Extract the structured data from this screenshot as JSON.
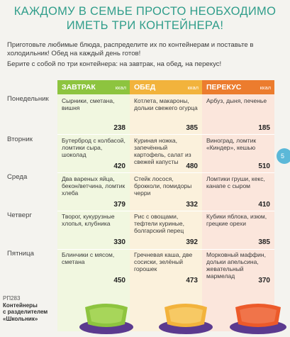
{
  "title": {
    "line1": "КАЖДОМУ В СЕМЬЕ ПРОСТО НЕОБХОДИМО",
    "line2": "ИМЕТЬ ТРИ КОНТЕЙНЕРА!"
  },
  "intro": {
    "p1": "Приготовьте любимые блюда, распределите их по контейнерам и поставьте в холодильник! Обед на каждый день готов!",
    "p2": "Берите с собой по три контейнера: на завтрак, на обед, на перекус!"
  },
  "columns": [
    {
      "name": "ЗАВТРАК",
      "unit": "ккал",
      "color": "#8dc43f"
    },
    {
      "name": "ОБЕД",
      "unit": "ккал",
      "color": "#f2b33c"
    },
    {
      "name": "ПЕРЕКУС",
      "unit": "ккал",
      "color": "#ec7c2e"
    }
  ],
  "days": [
    {
      "day": "Понедельник",
      "meals": [
        {
          "food": "Сырники, сметана, вишня",
          "kcal": "238"
        },
        {
          "food": "Котлета, макароны, дольки свежего огурца",
          "kcal": "385"
        },
        {
          "food": "Арбуз, дыня, печенье",
          "kcal": "185"
        }
      ]
    },
    {
      "day": "Вторник",
      "meals": [
        {
          "food": "Бутерброд с колбасой, ломтики сыра, шоколад",
          "kcal": "420"
        },
        {
          "food": "Куриная ножка, запечённый картофель, салат из свежей капусты",
          "kcal": "480"
        },
        {
          "food": "Виноград, ломтик «Киндер», кешью",
          "kcal": "510"
        }
      ]
    },
    {
      "day": "Среда",
      "meals": [
        {
          "food": "Два вареных яйца, бекон/ветчина, ломтик хлеба",
          "kcal": "379"
        },
        {
          "food": "Стейк лосося, брокколи, помидоры черри",
          "kcal": "332"
        },
        {
          "food": "Ломтики груши, кекс, канапе с сыром",
          "kcal": "410"
        }
      ]
    },
    {
      "day": "Четверг",
      "meals": [
        {
          "food": "Творог, кукурузные хлопья, клубника",
          "kcal": "330"
        },
        {
          "food": "Рис с овощами, тефтели куриные, болгарский перец",
          "kcal": "392"
        },
        {
          "food": "Кубики яблока, изюм, грецкие орехи",
          "kcal": "385"
        }
      ]
    },
    {
      "day": "Пятница",
      "meals": [
        {
          "food": "Блинчики с мясом, сметана",
          "kcal": "450"
        },
        {
          "food": "Гречневая каша, две сосиски, зелёный горошек",
          "kcal": "473"
        },
        {
          "food": "Морковный маффин, дольки апельсина, жевательный мармелад",
          "kcal": "370"
        }
      ]
    }
  ],
  "page_number": "5",
  "product": {
    "code": "РП283",
    "name_line1": "Контейнеры",
    "name_line2": "с разделителем",
    "name_line3": "«Школьник»",
    "colors": [
      "#8dc43f",
      "#f2b33c",
      "#ec5a2a",
      "#5b3a8f"
    ]
  }
}
